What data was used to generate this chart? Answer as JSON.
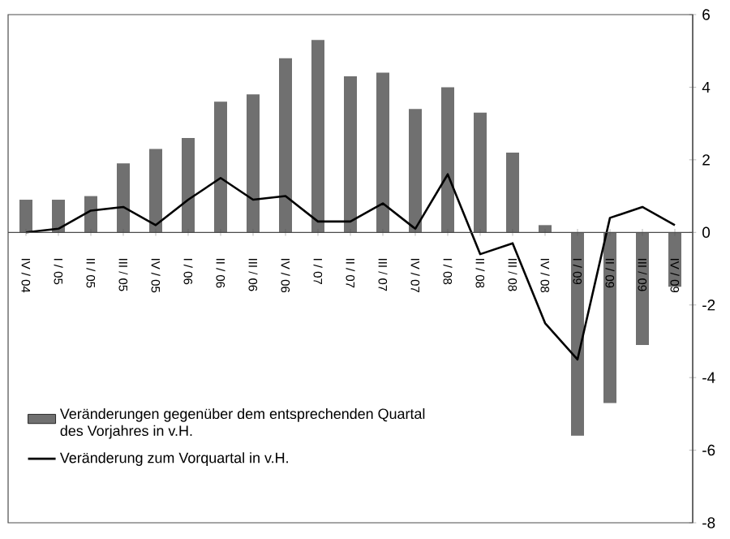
{
  "chart_data": {
    "type": "bar",
    "categories": [
      "IV / 04",
      "I / 05",
      "II / 05",
      "III / 05",
      "IV / 05",
      "I / 06",
      "II / 06",
      "III / 06",
      "IV / 06",
      "I / 07",
      "II / 07",
      "III / 07",
      "IV / 07",
      "I / 08",
      "II / 08",
      "III / 08",
      "IV / 08",
      "I / 09",
      "II / 09",
      "III / 09",
      "IV / 09"
    ],
    "series": [
      {
        "name": "Veränderungen gegenüber dem entsprechenden Quartal des Vorjahres in v.H.",
        "color": "#707070",
        "values": [
          0.9,
          0.9,
          1.0,
          1.9,
          2.3,
          2.6,
          3.6,
          3.8,
          4.8,
          5.3,
          4.3,
          4.4,
          3.4,
          4.0,
          3.3,
          2.2,
          0.2,
          -5.6,
          -4.7,
          -3.1,
          -1.5
        ]
      },
      {
        "name": "Veränderung zum Vorquartal in v.H.",
        "type": "line",
        "color": "#000000",
        "values": [
          0.0,
          0.1,
          0.6,
          0.7,
          0.2,
          0.9,
          1.5,
          0.9,
          1.0,
          0.3,
          0.3,
          0.8,
          0.1,
          1.6,
          -0.6,
          -0.3,
          -2.5,
          -3.5,
          0.4,
          0.7,
          0.2
        ]
      }
    ],
    "ylim": [
      -8,
      6
    ],
    "yticks": [
      -8,
      -6,
      -4,
      -2,
      0,
      2,
      4,
      6
    ],
    "legend": "bottom left"
  }
}
